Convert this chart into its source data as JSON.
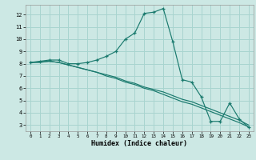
{
  "xlabel": "Humidex (Indice chaleur)",
  "background_color": "#cce8e4",
  "grid_color": "#a8d4cf",
  "line_color": "#1a7a6e",
  "xlim": [
    -0.5,
    23.5
  ],
  "ylim": [
    2.5,
    12.8
  ],
  "xticks": [
    0,
    1,
    2,
    3,
    4,
    5,
    6,
    7,
    8,
    9,
    10,
    11,
    12,
    13,
    14,
    15,
    16,
    17,
    18,
    19,
    20,
    21,
    22,
    23
  ],
  "yticks": [
    3,
    4,
    5,
    6,
    7,
    8,
    9,
    10,
    11,
    12
  ],
  "series": [
    {
      "x": [
        0,
        1,
        2,
        3,
        4,
        5,
        6,
        7,
        8,
        9,
        10,
        11,
        12,
        13,
        14,
        15,
        16,
        17,
        18,
        19,
        20,
        21,
        22,
        23
      ],
      "y": [
        8.1,
        8.2,
        8.3,
        8.3,
        8.0,
        8.0,
        8.1,
        8.3,
        8.6,
        9.0,
        10.0,
        10.5,
        12.1,
        12.2,
        12.5,
        9.8,
        6.7,
        6.5,
        5.3,
        3.3,
        3.3,
        4.8,
        3.5,
        2.8
      ],
      "marker": true
    },
    {
      "x": [
        0,
        1,
        2,
        3,
        4,
        5,
        6,
        7,
        8,
        9,
        10,
        11,
        12,
        13,
        14,
        15,
        16,
        17,
        18,
        19,
        20,
        21,
        22,
        23
      ],
      "y": [
        8.1,
        8.15,
        8.2,
        8.1,
        7.9,
        7.7,
        7.5,
        7.3,
        7.1,
        6.9,
        6.6,
        6.4,
        6.1,
        5.9,
        5.7,
        5.4,
        5.1,
        4.9,
        4.6,
        4.3,
        4.0,
        3.7,
        3.4,
        3.0
      ],
      "marker": false
    },
    {
      "x": [
        0,
        1,
        2,
        3,
        4,
        5,
        6,
        7,
        8,
        9,
        10,
        11,
        12,
        13,
        14,
        15,
        16,
        17,
        18,
        19,
        20,
        21,
        22,
        23
      ],
      "y": [
        8.1,
        8.1,
        8.2,
        8.1,
        7.9,
        7.7,
        7.5,
        7.3,
        7.0,
        6.8,
        6.5,
        6.3,
        6.0,
        5.8,
        5.5,
        5.2,
        4.9,
        4.7,
        4.4,
        4.1,
        3.8,
        3.5,
        3.2,
        2.85
      ],
      "marker": false
    }
  ]
}
